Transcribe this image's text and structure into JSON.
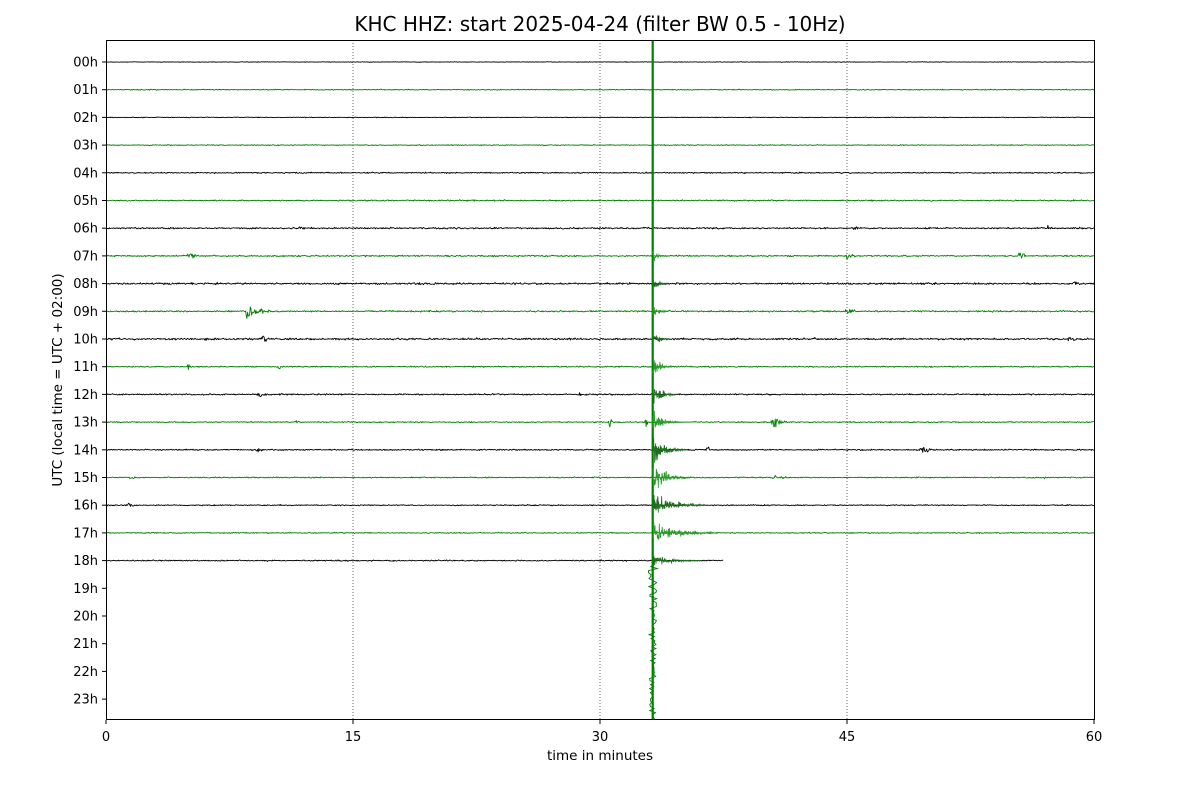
{
  "chart_data": {
    "type": "line",
    "title": "KHC HHZ: start 2025-04-24 (filter BW 0.5 - 10Hz)",
    "xlabel": "time in minutes",
    "ylabel": "UTC (local time = UTC + 02:00)",
    "xlim": [
      0,
      60
    ],
    "xticks": [
      0,
      15,
      30,
      45,
      60
    ],
    "x_gridlines": [
      15,
      30,
      45
    ],
    "grid": "vertical dotted",
    "row_labels": [
      "00h",
      "01h",
      "02h",
      "03h",
      "04h",
      "05h",
      "06h",
      "07h",
      "08h",
      "09h",
      "10h",
      "11h",
      "12h",
      "13h",
      "14h",
      "15h",
      "16h",
      "17h",
      "18h",
      "19h",
      "20h",
      "21h",
      "22h",
      "23h"
    ],
    "row_colors": [
      "#000000",
      "#008000"
    ],
    "recorded_rows": 19,
    "last_row_end_minute": 37.5,
    "noise_amplitude_by_row": [
      0.15,
      0.22,
      0.18,
      0.22,
      0.3,
      0.32,
      0.38,
      0.35,
      0.45,
      0.38,
      0.45,
      0.3,
      0.35,
      0.28,
      0.32,
      0.28,
      0.28,
      0.25,
      0.3
    ],
    "events": [
      {
        "row": "06h",
        "minute": 11.8,
        "amplitude": 1.5,
        "duration_min": 0.8
      },
      {
        "row": "06h",
        "minute": 45.5,
        "amplitude": 1.8,
        "duration_min": 0.7
      },
      {
        "row": "06h",
        "minute": 57.2,
        "amplitude": 1.8,
        "duration_min": 0.4
      },
      {
        "row": "07h",
        "minute": 5.0,
        "amplitude": 1.8,
        "duration_min": 1.6
      },
      {
        "row": "07h",
        "minute": 45.0,
        "amplitude": 2.2,
        "duration_min": 0.8
      },
      {
        "row": "07h",
        "minute": 55.5,
        "amplitude": 4.0,
        "duration_min": 0.5
      },
      {
        "row": "08h",
        "minute": 58.8,
        "amplitude": 1.8,
        "duration_min": 0.8
      },
      {
        "row": "09h",
        "minute": 8.6,
        "amplitude": 6.0,
        "duration_min": 1.5
      },
      {
        "row": "09h",
        "minute": 45.0,
        "amplitude": 3.0,
        "duration_min": 0.8
      },
      {
        "row": "10h",
        "minute": 6.0,
        "amplitude": 1.6,
        "duration_min": 0.6
      },
      {
        "row": "10h",
        "minute": 9.5,
        "amplitude": 1.8,
        "duration_min": 1.0
      },
      {
        "row": "10h",
        "minute": 30.0,
        "amplitude": 1.4,
        "duration_min": 0.4
      },
      {
        "row": "10h",
        "minute": 43.0,
        "amplitude": 1.5,
        "duration_min": 0.6
      },
      {
        "row": "10h",
        "minute": 58.5,
        "amplitude": 2.5,
        "duration_min": 1.0
      },
      {
        "row": "11h",
        "minute": 5.0,
        "amplitude": 2.2,
        "duration_min": 0.3
      },
      {
        "row": "11h",
        "minute": 10.5,
        "amplitude": 1.3,
        "duration_min": 0.6
      },
      {
        "row": "12h",
        "minute": 9.3,
        "amplitude": 2.5,
        "duration_min": 1.0
      },
      {
        "row": "12h",
        "minute": 28.8,
        "amplitude": 2.0,
        "duration_min": 0.3
      },
      {
        "row": "13h",
        "minute": 11.5,
        "amplitude": 1.5,
        "duration_min": 0.5
      },
      {
        "row": "13h",
        "minute": 30.6,
        "amplitude": 3.0,
        "duration_min": 0.3
      },
      {
        "row": "13h",
        "minute": 32.8,
        "amplitude": 2.5,
        "duration_min": 0.3
      },
      {
        "row": "13h",
        "minute": 40.5,
        "amplitude": 4.0,
        "duration_min": 1.0
      },
      {
        "row": "14h",
        "minute": 9.2,
        "amplitude": 1.6,
        "duration_min": 0.8
      },
      {
        "row": "14h",
        "minute": 36.5,
        "amplitude": 1.8,
        "duration_min": 0.5
      },
      {
        "row": "14h",
        "minute": 49.5,
        "amplitude": 2.0,
        "duration_min": 1.5
      },
      {
        "row": "15h",
        "minute": 1.5,
        "amplitude": 1.5,
        "duration_min": 0.8
      },
      {
        "row": "15h",
        "minute": 40.5,
        "amplitude": 1.5,
        "duration_min": 1.5
      },
      {
        "row": "15h",
        "minute": 57.0,
        "amplitude": 1.3,
        "duration_min": 0.4
      },
      {
        "row": "16h",
        "minute": 1.3,
        "amplitude": 2.5,
        "duration_min": 0.7
      }
    ],
    "earthquake": {
      "minute": 33.2,
      "rows": [
        "07h",
        "08h",
        "09h",
        "10h",
        "11h",
        "12h",
        "13h",
        "14h",
        "15h",
        "16h",
        "17h",
        "18h"
      ],
      "row_amplitude": [
        3.0,
        3.5,
        4.0,
        4.5,
        5.0,
        5.5,
        6.0,
        7.0,
        7.0,
        7.0,
        6.0,
        3.0
      ],
      "coda_minutes": [
        1.0,
        1.0,
        1.0,
        1.0,
        1.2,
        1.4,
        1.6,
        2.0,
        2.4,
        3.2,
        4.0,
        3.0
      ],
      "full_height_line": true,
      "tail_below_last_row_rows": 6
    }
  }
}
